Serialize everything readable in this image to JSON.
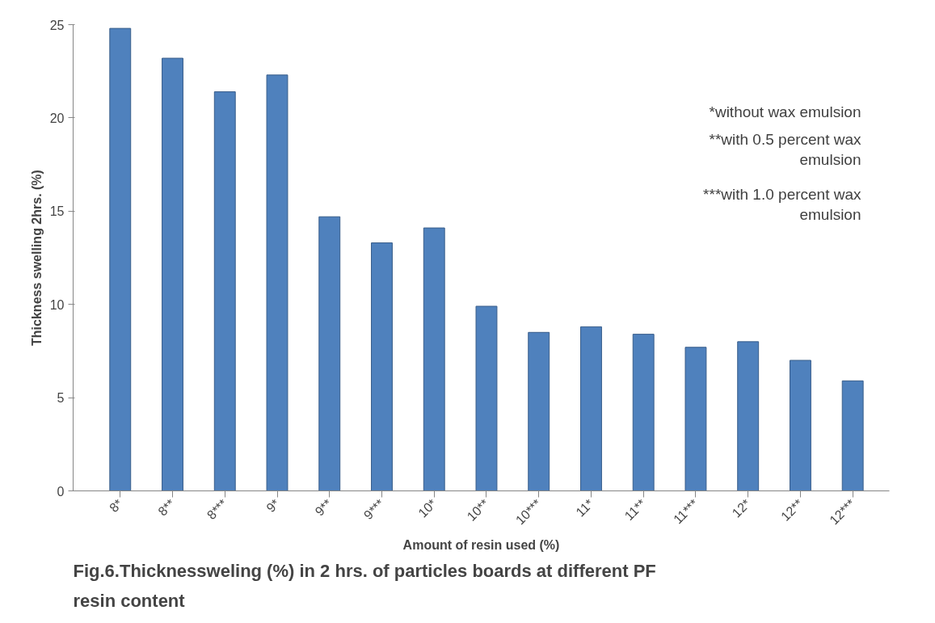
{
  "chart_data": {
    "type": "bar",
    "title": "Fig.6.Thicknessweling (%) in 2 hrs. of particles boards at different PF resin content",
    "xlabel": "Amount of resin used (%)",
    "ylabel": "Thickness swelling 2hrs. (%)",
    "categories": [
      "8*",
      "8**",
      "8***",
      "9*",
      "9**",
      "9***",
      "10*",
      "10**",
      "10***",
      "11*",
      "11**",
      "11***",
      "12*",
      "12**",
      "12***"
    ],
    "values": [
      24.8,
      23.2,
      21.4,
      22.3,
      14.7,
      13.3,
      14.1,
      9.9,
      8.5,
      8.8,
      8.4,
      7.7,
      8.0,
      7.0,
      5.9
    ],
    "color": "#4f81bd",
    "ylim": [
      0,
      25
    ],
    "yticks": [
      0,
      5,
      10,
      15,
      20,
      25
    ],
    "grid": false,
    "annotations": [
      "*without wax emulsion",
      "**with 0.5 percent wax emulsion",
      "***with 1.0 percent wax emulsion"
    ]
  }
}
